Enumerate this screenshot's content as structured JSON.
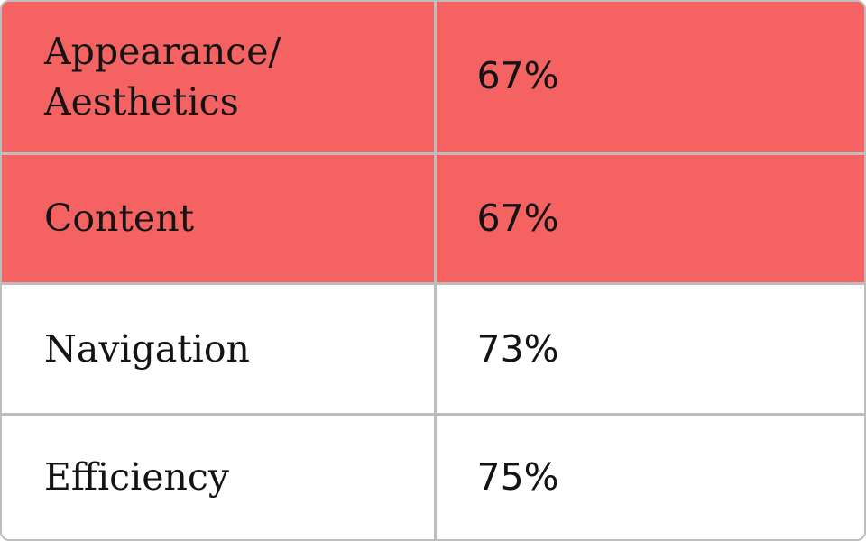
{
  "table": {
    "highlight_color": "#f46262",
    "border_color": "#bdbdbd",
    "rows": [
      {
        "metric": "Appearance/ Aesthetics",
        "value": "67%",
        "highlighted": true
      },
      {
        "metric": "Content",
        "value": "67%",
        "highlighted": true
      },
      {
        "metric": "Navigation",
        "value": "73%",
        "highlighted": false
      },
      {
        "metric": "Efficiency",
        "value": "75%",
        "highlighted": false
      }
    ]
  }
}
